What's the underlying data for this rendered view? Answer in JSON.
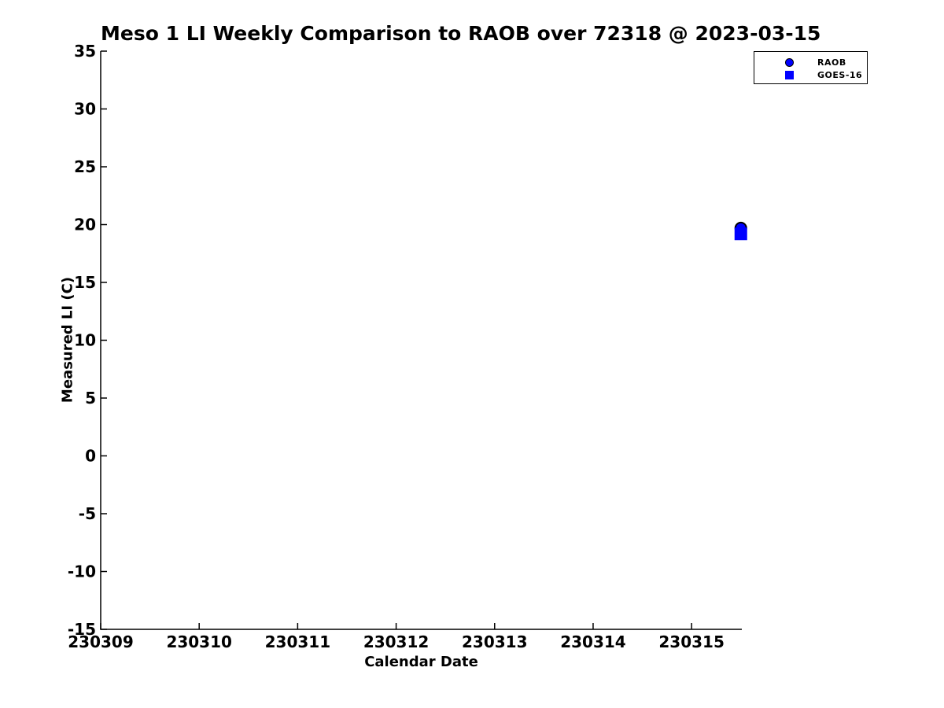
{
  "chart_data": {
    "type": "scatter",
    "title": "Meso 1 LI Weekly Comparison to RAOB over 72318 @ 2023-03-15",
    "xlabel": "Calendar Date",
    "ylabel": "Measured LI (C)",
    "xlim": [
      230309,
      230315.51
    ],
    "ylim": [
      -15,
      35
    ],
    "x_ticks": [
      230309,
      230310,
      230311,
      230312,
      230313,
      230314,
      230315
    ],
    "y_ticks": [
      -15,
      -10,
      -5,
      0,
      5,
      10,
      15,
      20,
      25,
      30,
      35
    ],
    "grid": false,
    "legend": {
      "position": "top-right-outside",
      "entries": [
        "RAOB",
        "GOES-16"
      ]
    },
    "series": [
      {
        "name": "RAOB",
        "marker": "circle",
        "color": "#0000ff",
        "edge_color": "#000000",
        "points": [
          {
            "x": 230315.5,
            "y": 19.7
          }
        ]
      },
      {
        "name": "GOES-16",
        "marker": "square",
        "color": "#0000ff",
        "edge_color": "#0000ff",
        "points": [
          {
            "x": 230315.5,
            "y": 19.2
          }
        ]
      }
    ],
    "axis_color": "#000000",
    "background_color": "#ffffff"
  }
}
